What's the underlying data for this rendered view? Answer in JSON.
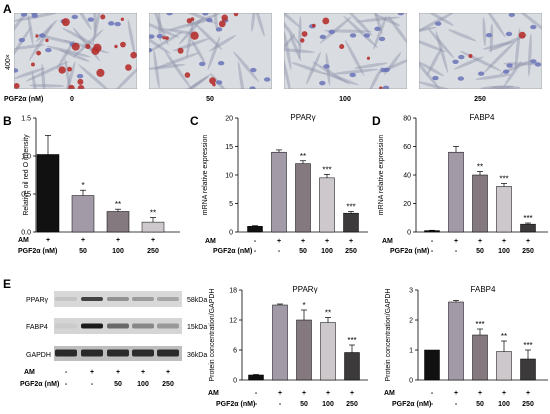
{
  "figure": {
    "panel_letters": {
      "A": "A",
      "B": "B",
      "C": "C",
      "D": "D",
      "E": "E"
    },
    "magnification": "400×",
    "pgf_row_label": "PGF2α (nM)",
    "micro_doses": [
      "0",
      "50",
      "100",
      "250"
    ],
    "am_label": "AM",
    "pgf_label": "PGF2α (nM)",
    "am_signs_full": [
      "-",
      "+",
      "+",
      "+",
      "+"
    ],
    "pgf_signs_full": [
      "-",
      "-",
      "50",
      "100",
      "250"
    ],
    "am_signs_b": [
      "+",
      "+",
      "+",
      "+"
    ],
    "pgf_signs_b": [
      "-",
      "50",
      "100",
      "250"
    ]
  },
  "colors": {
    "bar_fills": [
      "#111111",
      "#a39aa8",
      "#83797f",
      "#cdc8cc",
      "#3d3a3c"
    ],
    "bar_fills_b": [
      "#111111",
      "#a39aa8",
      "#83797f",
      "#cdc8cc"
    ],
    "micro_bg": "#d9dde2",
    "stain_blue": "#6a73b8",
    "stain_red": "#b5302f"
  },
  "western_blot": {
    "rows": [
      {
        "name": "PPARγ",
        "kda": "58kDa"
      },
      {
        "name": "FABP4",
        "kda": "15kDa"
      },
      {
        "name": "GAPDH",
        "kda": "36kDa"
      }
    ]
  },
  "chart_data": [
    {
      "id": "B",
      "type": "bar",
      "title": "",
      "ylabel": "Relative oil red O intensity",
      "ylim": [
        0,
        1.5
      ],
      "yticks": [
        0.0,
        0.5,
        1.0,
        1.5
      ],
      "values": [
        1.02,
        0.48,
        0.27,
        0.13
      ],
      "errors": [
        0.25,
        0.07,
        0.03,
        0.06
      ],
      "stars": [
        "",
        "*",
        "**",
        "**"
      ]
    },
    {
      "id": "C",
      "type": "bar",
      "title": "PPARγ",
      "ylabel": "mRNA relative expression",
      "ylim": [
        0,
        20
      ],
      "yticks": [
        0,
        5,
        10,
        15,
        20
      ],
      "values": [
        1.0,
        14.0,
        12.0,
        9.5,
        3.3
      ],
      "errors": [
        0.1,
        0.4,
        0.5,
        0.6,
        0.3
      ],
      "stars": [
        "",
        "",
        "**",
        "***",
        "***"
      ]
    },
    {
      "id": "D",
      "type": "bar",
      "title": "FABP4",
      "ylabel": "mRNA relative expression",
      "ylim": [
        0,
        80
      ],
      "yticks": [
        0,
        20,
        40,
        60,
        80
      ],
      "values": [
        1.0,
        56.0,
        40.0,
        32.0,
        5.5
      ],
      "errors": [
        0.2,
        4.0,
        2.5,
        2.0,
        0.8
      ],
      "stars": [
        "",
        "",
        "**",
        "***",
        "***"
      ]
    },
    {
      "id": "E1",
      "type": "bar",
      "title": "PPARγ",
      "ylabel": "Protein concentration/GAPDH",
      "ylim": [
        0,
        18
      ],
      "yticks": [
        0,
        6,
        12,
        18
      ],
      "values": [
        1.0,
        15.0,
        12.0,
        11.5,
        5.5
      ],
      "errors": [
        0.1,
        0.2,
        2.0,
        1.0,
        1.5
      ],
      "stars": [
        "",
        "",
        "*",
        "**",
        "***"
      ]
    },
    {
      "id": "E2",
      "type": "bar",
      "title": "FABP4",
      "ylabel": "Protein concentration/GAPDH",
      "ylim": [
        0,
        3
      ],
      "yticks": [
        0,
        1,
        2,
        3
      ],
      "values": [
        1.0,
        2.6,
        1.5,
        0.95,
        0.7
      ],
      "errors": [
        0.0,
        0.05,
        0.2,
        0.35,
        0.3
      ],
      "stars": [
        "",
        "",
        "***",
        "**",
        "***"
      ]
    }
  ]
}
